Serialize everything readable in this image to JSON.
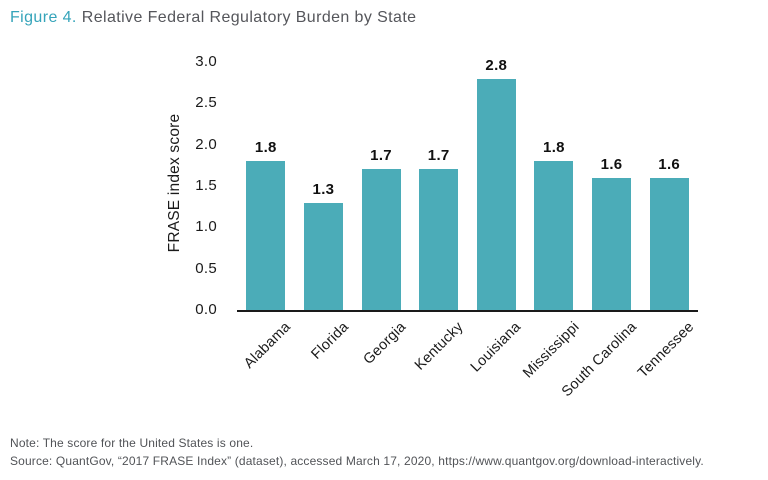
{
  "title": {
    "prefix": "Figure 4.",
    "rest": "Relative Federal Regulatory Burden by State"
  },
  "note": "Note: The score for the United States is one.",
  "source": "Source: QuantGov, “2017 FRASE Index” (dataset), accessed March 17, 2020, https://www.quantgov.org/download-interactively.",
  "colors": {
    "bar": "#4BACB8",
    "accent": "#35A4BA",
    "title_text": "#55565B",
    "footer_text": "#515357",
    "axis_text": "#1A1A1A",
    "axis_line": "#1A1A1A"
  },
  "chart_data": {
    "type": "bar",
    "categories": [
      "Alabama",
      "Florida",
      "Georgia",
      "Kentucky",
      "Louisiana",
      "Mississippi",
      "South Carolina",
      "Tennessee"
    ],
    "values": [
      1.8,
      1.3,
      1.7,
      1.7,
      2.8,
      1.8,
      1.6,
      1.6
    ],
    "bar_labels": [
      "1.8",
      "1.3",
      "1.7",
      "1.7",
      "2.8",
      "1.8",
      "1.6",
      "1.6"
    ],
    "title": "Figure 4. Relative Federal Regulatory Burden by State",
    "xlabel": "",
    "ylabel": "FRASE index score",
    "yticks": [
      "3.0",
      "2.5",
      "2.0",
      "1.5",
      "1.0",
      "0.5",
      "0.0"
    ],
    "ylim": [
      0.0,
      3.0
    ],
    "grid": false,
    "legend": "none",
    "bar_color": "#4BACB8"
  }
}
